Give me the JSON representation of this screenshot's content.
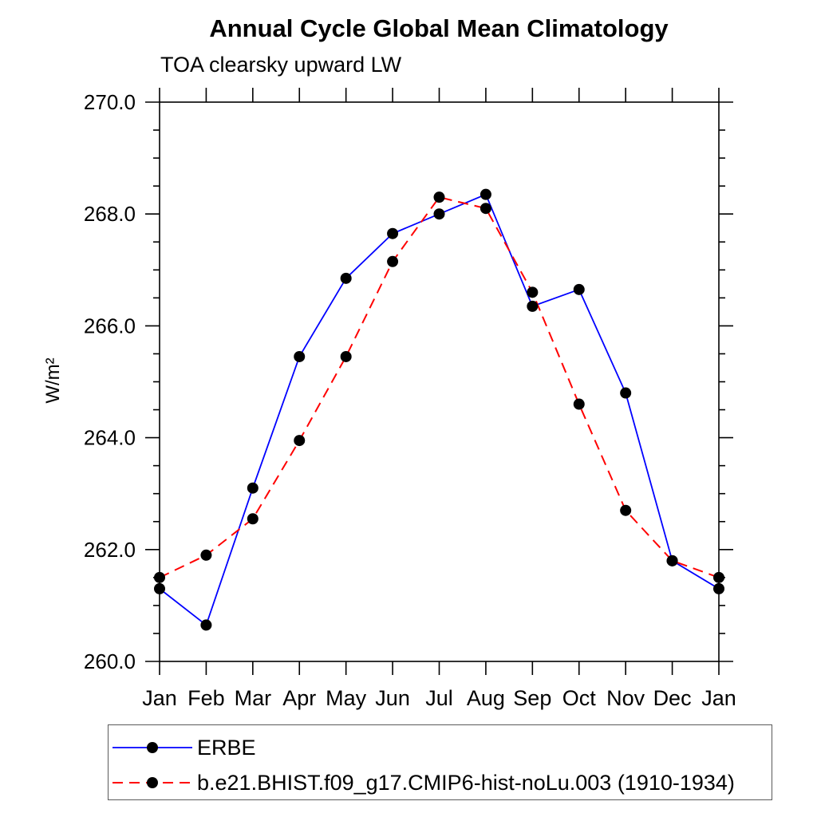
{
  "chart_data": {
    "type": "line",
    "title": "Annual Cycle Global Mean Climatology",
    "subtitle": "TOA clearsky upward LW",
    "ylabel": "W/m²",
    "xlabel": "",
    "categories": [
      "Jan",
      "Feb",
      "Mar",
      "Apr",
      "May",
      "Jun",
      "Jul",
      "Aug",
      "Sep",
      "Oct",
      "Nov",
      "Dec",
      "Jan"
    ],
    "ylim": [
      260.0,
      270.0
    ],
    "ytick_values": [
      260.0,
      262.0,
      264.0,
      266.0,
      268.0,
      270.0
    ],
    "ytick_labels": [
      "260.0",
      "262.0",
      "264.0",
      "266.0",
      "268.0",
      "270.0"
    ],
    "ytick_minor_step": 0.5,
    "grid": false,
    "frame": "box-with-outward-ticks",
    "legend_position": "bottom-left-box",
    "axis_color": "#000000",
    "marker_radius": 7,
    "series": [
      {
        "name": "ERBE",
        "line_color": "#0000ff",
        "line_style": "solid",
        "marker": "filled-circle",
        "marker_color": "#000000",
        "values": [
          261.3,
          260.65,
          263.1,
          265.45,
          266.85,
          267.65,
          268.0,
          268.35,
          266.35,
          266.65,
          264.8,
          261.8,
          261.3
        ]
      },
      {
        "name": "b.e21.BHIST.f09_g17.CMIP6-hist-noLu.003 (1910-1934)",
        "line_color": "#ff0000",
        "line_style": "dashed",
        "marker": "filled-circle",
        "marker_color": "#000000",
        "values": [
          261.5,
          261.9,
          262.55,
          263.95,
          265.45,
          267.15,
          268.3,
          268.1,
          266.6,
          264.6,
          262.7,
          261.8,
          261.5
        ]
      }
    ]
  }
}
